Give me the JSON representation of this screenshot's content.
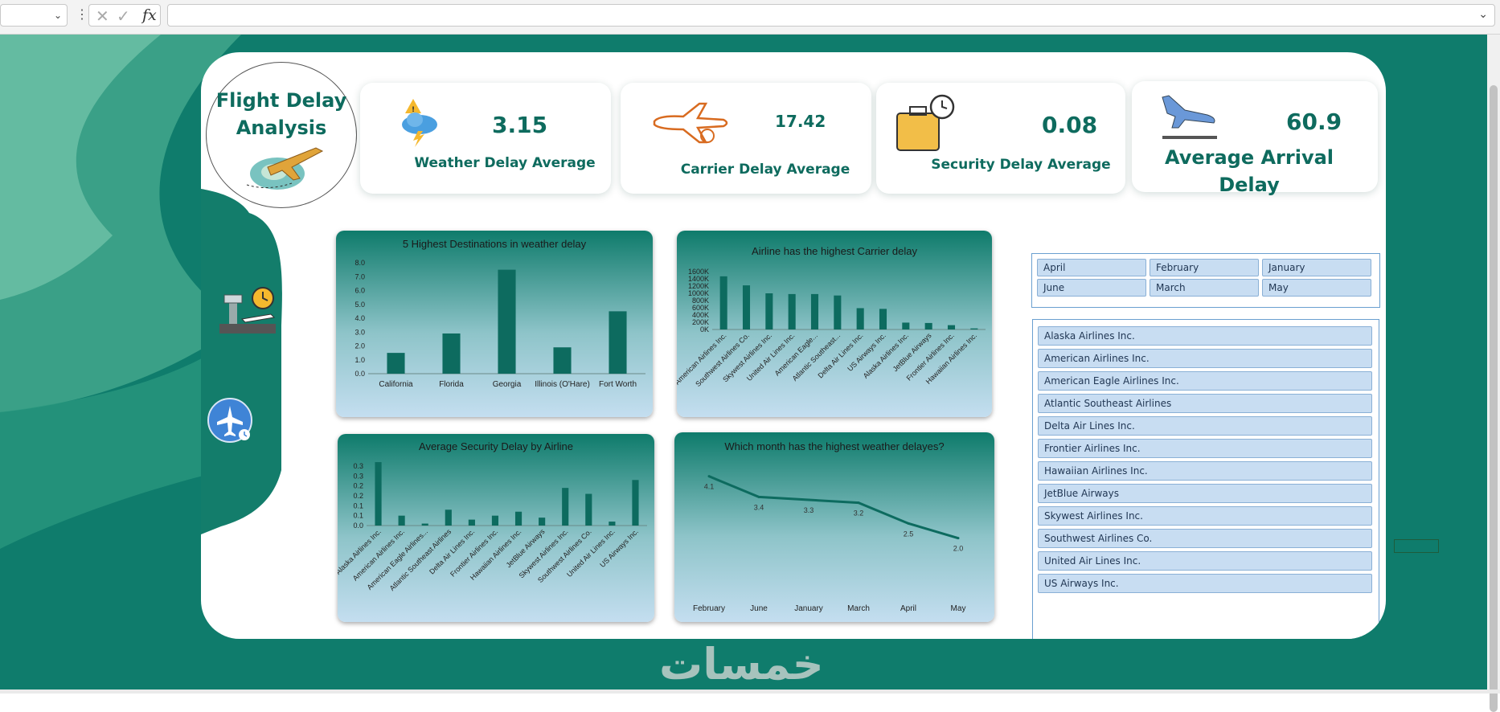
{
  "formula_bar": {
    "name_box_value": "",
    "name_box_icon": "chevron-down-icon",
    "more_icon": "vertical-dots-icon",
    "cancel_icon": "cancel-x-icon",
    "enter_icon": "check-icon",
    "fx_label": "fx",
    "formula_value": "",
    "expand_icon": "chevron-down-icon"
  },
  "dashboard": {
    "title_line1": "Flight Delay",
    "title_line2": "Analysis",
    "sidebar_icons": [
      "airport-tower-clock-icon",
      "airplane-clock-icon"
    ],
    "kpis": [
      {
        "value": "3.15",
        "label": "Weather Delay Average",
        "icon": "storm-cloud-icon"
      },
      {
        "value": "17.42",
        "label": "Carrier Delay Average",
        "icon": "plane-delay-icon"
      },
      {
        "value": "0.08",
        "label": "Security Delay Average",
        "icon": "luggage-clock-icon"
      },
      {
        "value": "60.9",
        "label": "Average Arrival Delay",
        "icon": "landing-plane-icon"
      }
    ]
  },
  "colors": {
    "teal_dark": "#0e6b5e",
    "teal_bar": "#0f6e62",
    "sheet_bg": "#0f7c6c",
    "slicer_btn": "#c8ddf2"
  },
  "chart_data": [
    {
      "type": "bar",
      "title": "5 Highest Destinations in weather delay",
      "categories": [
        "California",
        "Florida",
        "Georgia",
        "Illinois (O'Hare)",
        "Fort Worth"
      ],
      "values": [
        1.5,
        2.9,
        7.5,
        1.9,
        4.5
      ],
      "ylim": [
        0,
        8
      ],
      "yticks": [
        "0.0",
        "1.0",
        "2.0",
        "3.0",
        "4.0",
        "5.0",
        "6.0",
        "7.0",
        "8.0"
      ]
    },
    {
      "type": "bar",
      "title": "Airline has the highest Carrier delay",
      "categories": [
        "American Airlines Inc.",
        "Southwest Airlines Co.",
        "Skywest Airlines Inc.",
        "United Air Lines Inc.",
        "American Eagle...",
        "Atlantic Southeast...",
        "Delta Air Lines Inc.",
        "US Airways Inc.",
        "Alaska Airlines Inc.",
        "JetBlue Airways",
        "Frontier Airlines Inc.",
        "Hawaiian Airlines Inc."
      ],
      "values": [
        1470000,
        1220000,
        1000000,
        980000,
        980000,
        940000,
        590000,
        570000,
        190000,
        180000,
        120000,
        30000
      ],
      "ylim": [
        0,
        1600000
      ],
      "yticks": [
        "0K",
        "200K",
        "400K",
        "600K",
        "800K",
        "1000K",
        "1200K",
        "1400K",
        "1600K"
      ]
    },
    {
      "type": "bar",
      "title": "Average Security Delay by Airline",
      "categories": [
        "Alaska Airlines Inc.",
        "American Airlines Inc.",
        "American Eagle Airlines...",
        "Atlantic Southeast Airlines",
        "Delta Air Lines Inc.",
        "Frontier Airlines Inc.",
        "Hawaiian Airlines Inc.",
        "JetBlue Airways",
        "Skywest Airlines Inc.",
        "Southwest Airlines Co.",
        "United Air Lines Inc.",
        "US Airways Inc."
      ],
      "values": [
        0.32,
        0.05,
        0.01,
        0.08,
        0.03,
        0.05,
        0.07,
        0.04,
        0.19,
        0.16,
        0.02,
        0.23
      ],
      "ylim": [
        0,
        0.3
      ],
      "yticks": [
        "0.0",
        "0.1",
        "0.1",
        "0.2",
        "0.2",
        "0.3",
        "0.3"
      ]
    },
    {
      "type": "line",
      "title": "Which month has the highest weather delayes?",
      "categories": [
        "February",
        "June",
        "January",
        "March",
        "April",
        "May"
      ],
      "values": [
        4.1,
        3.4,
        3.3,
        3.2,
        2.5,
        2.0
      ],
      "data_labels": [
        "4.1",
        "3.4",
        "3.3",
        "3.2",
        "2.5",
        "2.0"
      ],
      "ylim": [
        1.5,
        4.5
      ]
    }
  ],
  "month_slicer": {
    "items": [
      "April",
      "February",
      "January",
      "June",
      "March",
      "May"
    ]
  },
  "airline_slicer": {
    "items": [
      "Alaska Airlines Inc.",
      "American Airlines Inc.",
      "American Eagle Airlines Inc.",
      "Atlantic Southeast Airlines",
      "Delta Air Lines Inc.",
      "Frontier Airlines Inc.",
      "Hawaiian Airlines Inc.",
      "JetBlue Airways",
      "Skywest Airlines Inc.",
      "Southwest Airlines Co.",
      "United Air Lines Inc.",
      "US Airways Inc."
    ]
  },
  "watermark": "خمسات"
}
